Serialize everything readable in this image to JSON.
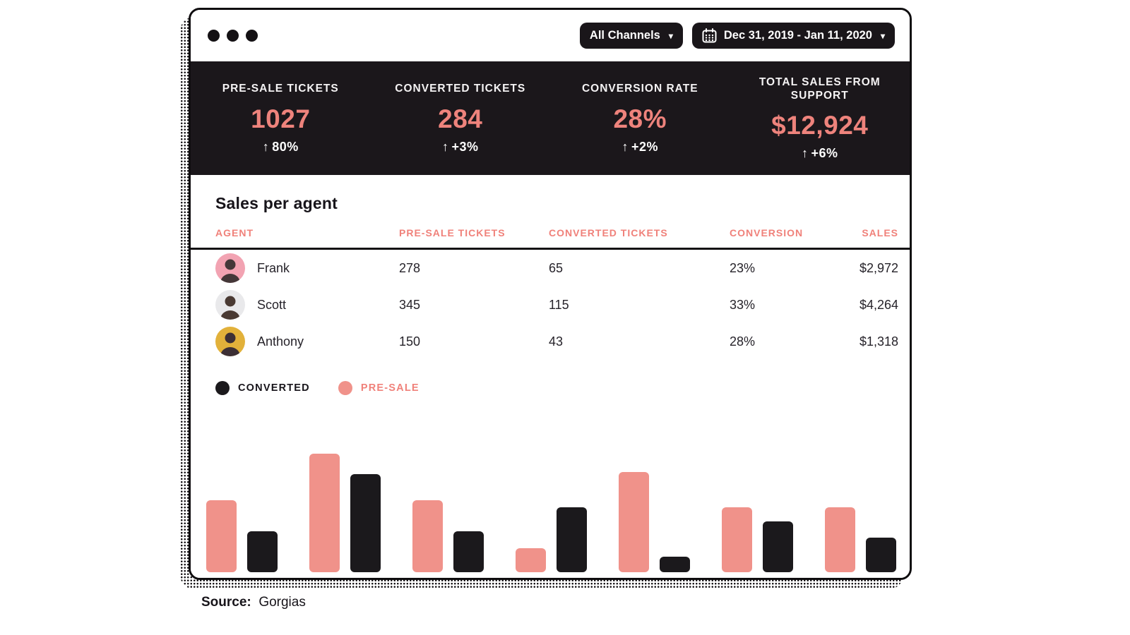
{
  "topbar": {
    "channel_filter": "All Channels",
    "date_range": "Dec 31, 2019 - Jan 11, 2020"
  },
  "icons": {
    "up_arrow": "↑",
    "caret_down": "▾",
    "calendar": "calendar-grid"
  },
  "stats": {
    "items": [
      {
        "label": "PRE-SALE TICKETS",
        "value": "1027",
        "change": "80%"
      },
      {
        "label": "CONVERTED TICKETS",
        "value": "284",
        "change": "+3%"
      },
      {
        "label": "CONVERSION RATE",
        "value": "28%",
        "change": "+2%"
      },
      {
        "label": "TOTAL SALES FROM SUPPORT",
        "value": "$12,924",
        "change": "+6%"
      }
    ]
  },
  "table": {
    "title": "Sales per agent",
    "columns": [
      "AGENT",
      "PRE-SALE TICKETS",
      "CONVERTED TICKETS",
      "CONVERSION",
      "SALES"
    ],
    "rows": [
      {
        "name": "Frank",
        "presale": "278",
        "converted": "65",
        "conversion": "23%",
        "sales": "$2,972",
        "avatar_bg": "#f2a3b2",
        "avatar_fg": "#443738"
      },
      {
        "name": "Scott",
        "presale": "345",
        "converted": "115",
        "conversion": "33%",
        "sales": "$4,264",
        "avatar_bg": "#e9e9eb",
        "avatar_fg": "#4a3a33"
      },
      {
        "name": "Anthony",
        "presale": "150",
        "converted": "43",
        "conversion": "28%",
        "sales": "$1,318",
        "avatar_bg": "#e2b13a",
        "avatar_fg": "#3c2f35"
      }
    ]
  },
  "legend": {
    "items": [
      {
        "label": "CONVERTED",
        "color": "#1b191c"
      },
      {
        "label": "PRE-SALE",
        "color": "#f0928a"
      }
    ]
  },
  "chart_data": {
    "type": "bar",
    "groups": 7,
    "series": [
      {
        "name": "PRE-SALE",
        "color": "#f0928a",
        "values": [
          102,
          168,
          102,
          34,
          142,
          92,
          92
        ]
      },
      {
        "name": "CONVERTED",
        "color": "#1b191c",
        "values": [
          58,
          139,
          58,
          92,
          22,
          72,
          49
        ]
      }
    ],
    "value_unit": "relative bar height (axis unlabeled in source)",
    "x_tick_labels_shown": false,
    "y_axis_shown": false,
    "grid": false,
    "legend_position": "top-left"
  },
  "colors": {
    "accent_pink_text": "#ee837c",
    "bar_pink": "#f0928a",
    "bar_black": "#1b191c",
    "dark_band_bg": "#1b171b",
    "window_border": "#0f0d0f"
  },
  "footer": {
    "source_label": "Source:",
    "source_value": "Gorgias"
  }
}
